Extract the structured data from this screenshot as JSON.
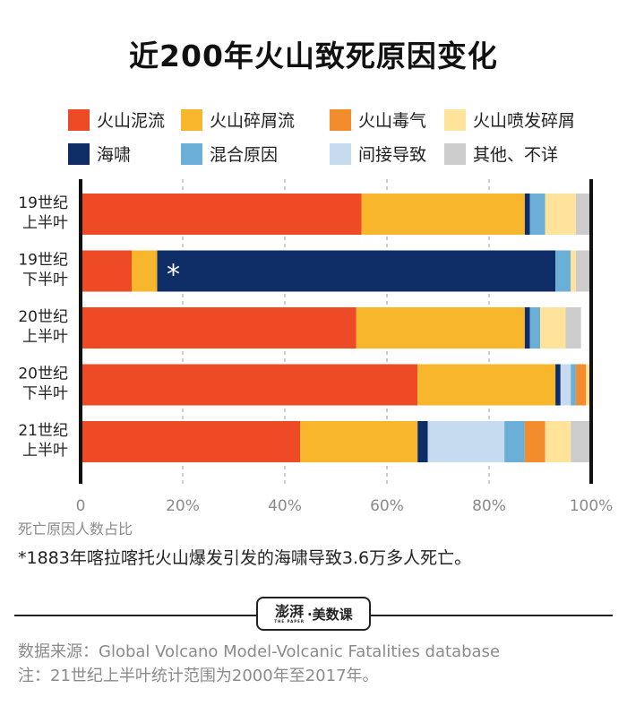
{
  "title": "近200年火山致死原因变化",
  "legend": [
    {
      "label": "火山泥流",
      "color": "#EE4A25"
    },
    {
      "label": "火山碎屑流",
      "color": "#F8B62D"
    },
    {
      "label": "火山毒气",
      "color": "#F28C2C"
    },
    {
      "label": "火山喷发碎屑",
      "color": "#FFE39A"
    },
    {
      "label": "海啸",
      "color": "#0E2C66"
    },
    {
      "label": "混合原因",
      "color": "#6BAED6"
    },
    {
      "label": "间接导致",
      "color": "#C6DBEF"
    },
    {
      "label": "其他、不详",
      "color": "#CCCCCC"
    }
  ],
  "chart_data": {
    "type": "bar",
    "orientation": "horizontal",
    "stacked": true,
    "categories": [
      [
        "19世纪",
        "上半叶"
      ],
      [
        "19世纪",
        "下半叶"
      ],
      [
        "20世纪",
        "上半叶"
      ],
      [
        "20世纪",
        "下半叶"
      ],
      [
        "21世纪",
        "上半叶"
      ]
    ],
    "series": [
      {
        "name": "火山泥流",
        "values": [
          55,
          10,
          54,
          66,
          43
        ]
      },
      {
        "name": "火山碎屑流",
        "values": [
          32,
          5,
          33,
          27,
          23
        ]
      },
      {
        "name": "火山毒气",
        "values": [
          0,
          0,
          0,
          2,
          4
        ]
      },
      {
        "name": "火山喷发碎屑",
        "values": [
          6,
          1,
          5,
          1,
          5
        ]
      },
      {
        "name": "海啸",
        "values": [
          1,
          78,
          1,
          1,
          2
        ]
      },
      {
        "name": "混合原因",
        "values": [
          3,
          3,
          2,
          1,
          4
        ]
      },
      {
        "name": "间接导致",
        "values": [
          0,
          0,
          0,
          2,
          15
        ]
      },
      {
        "name": "其他、不详",
        "values": [
          3,
          3,
          3,
          0,
          4
        ]
      }
    ],
    "stack_order": [
      "火山泥流",
      "火山碎屑流",
      "海啸",
      "间接导致",
      "混合原因",
      "火山毒气",
      "火山喷发碎屑",
      "其他、不详"
    ],
    "annotations": [
      {
        "category_index": 1,
        "series": "海啸",
        "text": "*"
      }
    ],
    "xlim": [
      0,
      100
    ],
    "xticks": [
      0,
      20,
      40,
      60,
      80,
      100
    ],
    "xtick_labels": [
      "0",
      "20%",
      "40%",
      "60%",
      "80%",
      "100%"
    ],
    "xlabel": "死亡原因人数占比",
    "grid": true
  },
  "footnote": "*1883年喀拉喀托火山爆发引发的海啸导致3.6万多人死亡。",
  "brand": {
    "mark": "澎湃",
    "mark_en": "THE PAPER",
    "separator": "·",
    "name": "美数课"
  },
  "source": {
    "line1": "数据来源：Global Volcano Model-Volcanic Fatalities database",
    "line2": "注：21世纪上半叶统计范围为2000年至2017年。"
  }
}
